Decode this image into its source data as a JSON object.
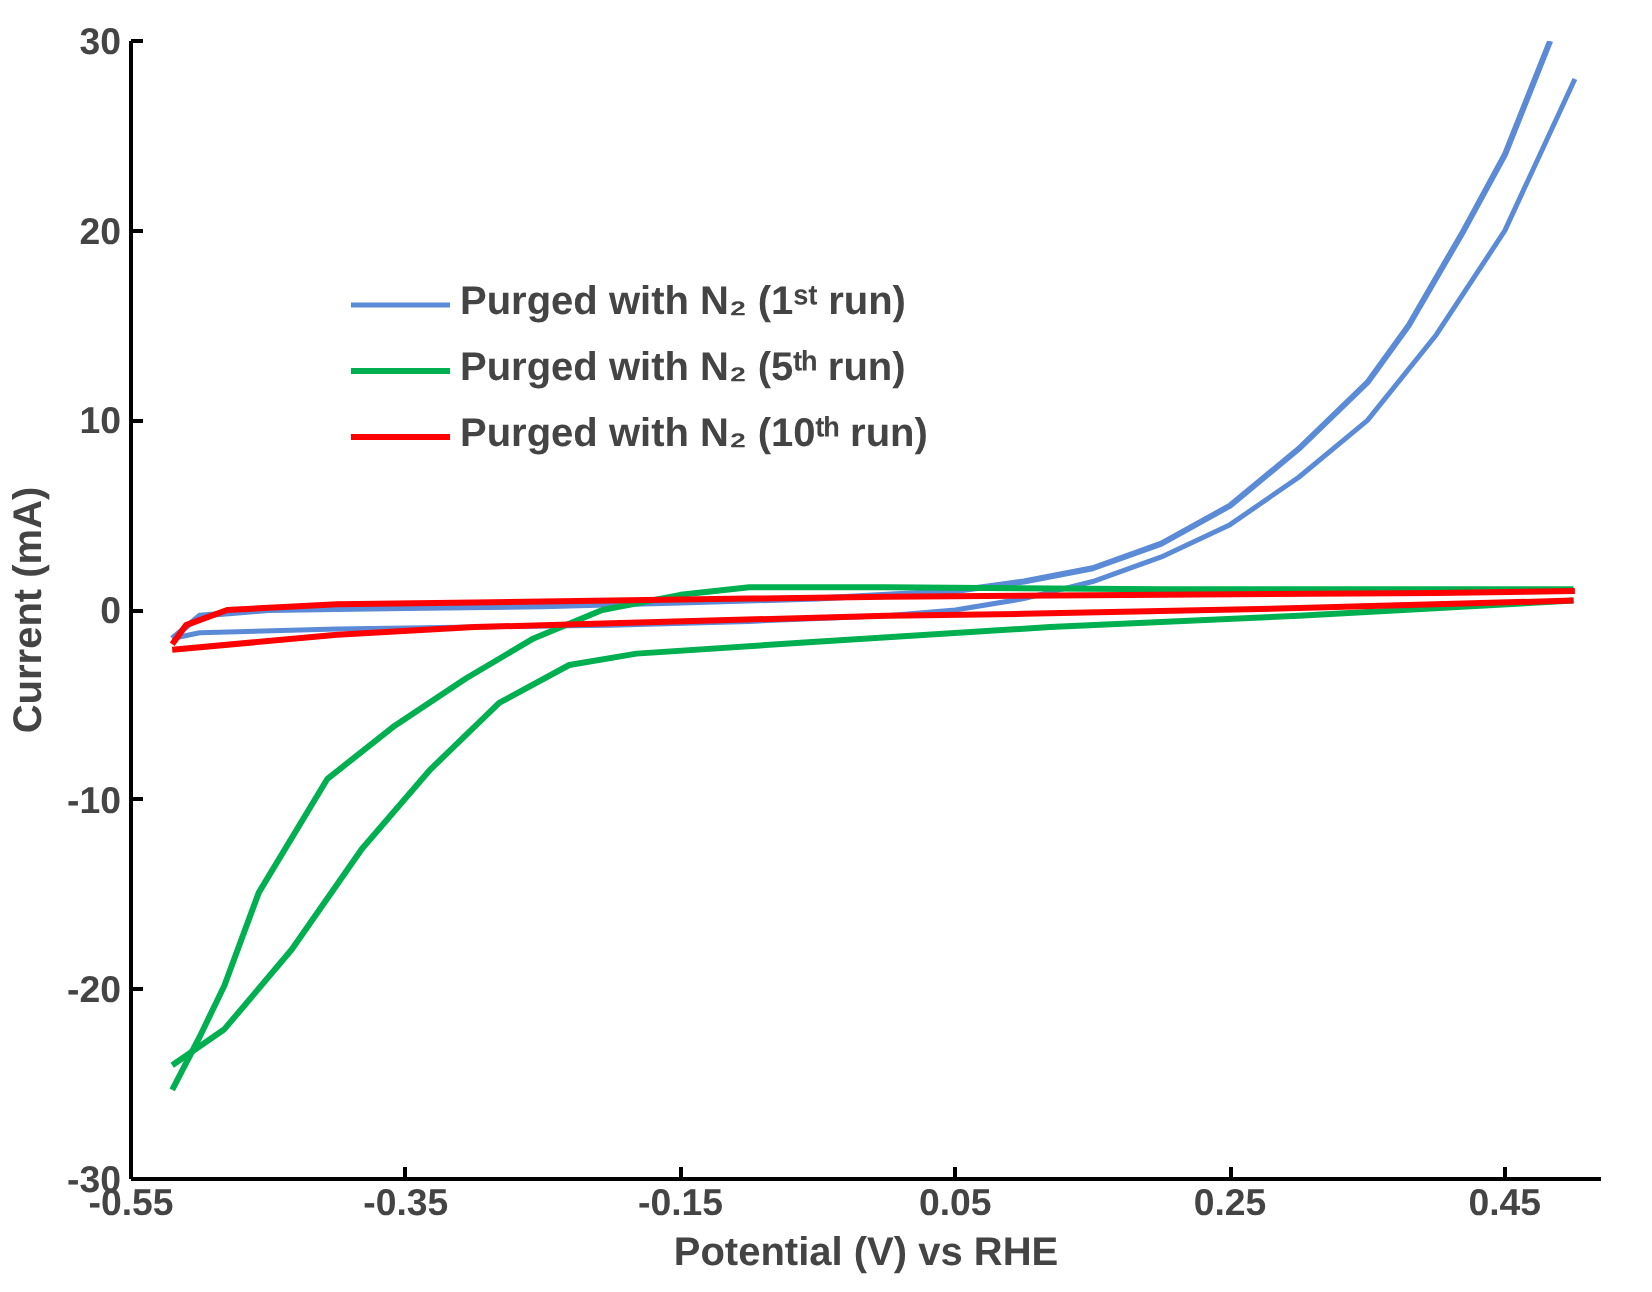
{
  "chart_data": {
    "type": "line",
    "xlabel": "Potential (V) vs RHE",
    "ylabel": "Current (mA)",
    "xlim": [
      -0.55,
      0.52
    ],
    "ylim": [
      -30,
      30
    ],
    "xticks": [
      -0.55,
      -0.35,
      -0.15,
      0.05,
      0.25,
      0.45
    ],
    "yticks": [
      -30,
      -20,
      -10,
      0,
      10,
      20,
      30
    ],
    "grid": false,
    "legend": "top left",
    "marker": "none",
    "line_style": "solid",
    "series": [
      {
        "name": "Purged with N₂ (1ˢᵗ run)",
        "color": "#5b8bd6",
        "x": [
          -0.52,
          -0.5,
          -0.4,
          -0.3,
          -0.2,
          -0.1,
          0.0,
          0.05,
          0.1,
          0.15,
          0.2,
          0.25,
          0.3,
          0.35,
          0.4,
          0.45,
          0.501
        ],
        "values": [
          -1.5,
          -1.2,
          -1.0,
          -0.9,
          -0.8,
          -0.6,
          -0.3,
          0.0,
          0.6,
          1.5,
          2.8,
          4.5,
          7.0,
          10.0,
          14.5,
          20.0,
          28.0
        ]
      },
      {
        "color": "#5b8bd6",
        "x": [
          -0.52,
          -0.5,
          -0.45,
          -0.35,
          -0.25,
          -0.15,
          -0.05,
          0.05,
          0.1,
          0.15,
          0.2,
          0.25,
          0.3,
          0.35,
          0.38,
          0.42,
          0.45,
          0.483
        ],
        "values": [
          -1.5,
          -0.3,
          0.0,
          0.1,
          0.2,
          0.4,
          0.6,
          1.0,
          1.5,
          2.2,
          3.5,
          5.5,
          8.5,
          12.0,
          15.0,
          20.0,
          24.0,
          30.0
        ]
      },
      {
        "name": "Purged with N₂ (5ᵗʰ run)",
        "color": "#00b050",
        "x": [
          -0.52,
          -0.5,
          -0.482,
          -0.457,
          -0.407,
          -0.358,
          -0.306,
          -0.257,
          -0.207,
          -0.15,
          -0.1,
          0.0,
          0.2,
          0.4,
          0.5
        ],
        "values": [
          -25.3,
          -22.5,
          -19.8,
          -14.9,
          -8.9,
          -6.1,
          -3.6,
          -1.5,
          0.0,
          0.8,
          1.2,
          1.2,
          1.1,
          1.1,
          1.1
        ]
      },
      {
        "color": "#00b050",
        "x": [
          -0.52,
          -0.482,
          -0.433,
          -0.382,
          -0.332,
          -0.282,
          -0.231,
          -0.182,
          -0.057,
          0.119,
          0.3,
          0.5
        ],
        "values": [
          -24.0,
          -22.1,
          -17.9,
          -12.6,
          -8.4,
          -4.9,
          -2.9,
          -2.3,
          -1.7,
          -0.9,
          -0.3,
          0.5
        ]
      },
      {
        "name": "Purged with N₂ (10ᵗʰ run)",
        "color": "#ff0000",
        "x": [
          -0.52,
          -0.51,
          -0.48,
          -0.4,
          -0.3,
          -0.1,
          0.0,
          0.2,
          0.4,
          0.501
        ],
        "values": [
          -1.8,
          -0.8,
          0.0,
          0.3,
          0.4,
          0.6,
          0.7,
          0.8,
          0.9,
          1.0
        ]
      },
      {
        "color": "#ff0000",
        "x": [
          -0.52,
          -0.4,
          -0.3,
          -0.2,
          0.0,
          0.1,
          0.3,
          0.5
        ],
        "values": [
          -2.1,
          -1.3,
          -0.9,
          -0.7,
          -0.3,
          -0.2,
          0.1,
          0.5
        ]
      }
    ]
  }
}
